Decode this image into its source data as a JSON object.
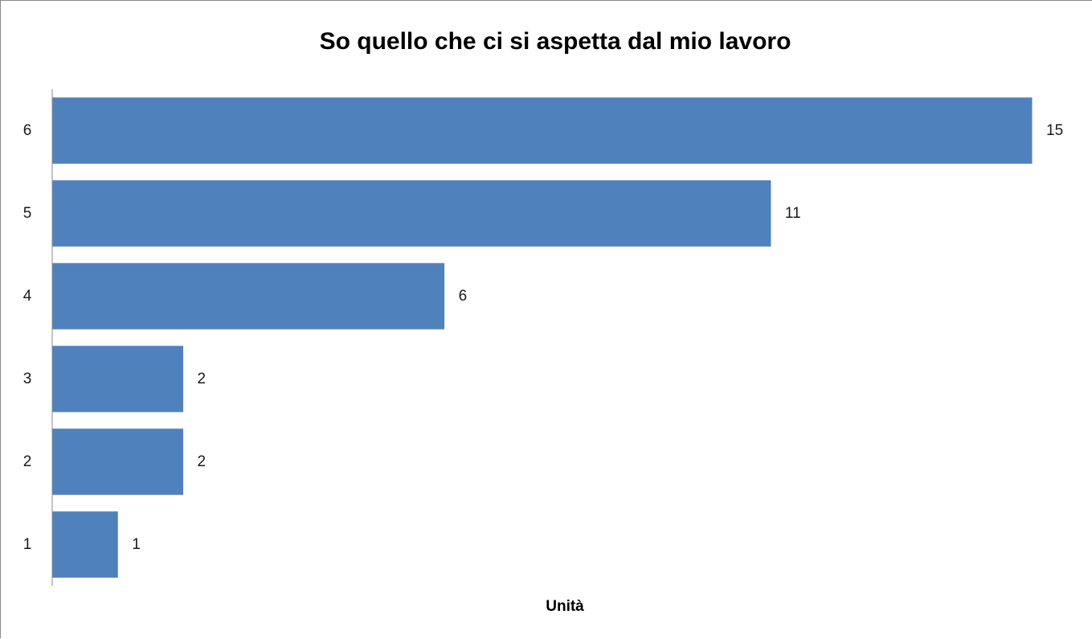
{
  "chart_data": {
    "type": "bar",
    "orientation": "horizontal",
    "title": "So quello che ci si aspetta dal mio lavoro",
    "categories": [
      "1",
      "2",
      "3",
      "4",
      "5",
      "6"
    ],
    "values": [
      1,
      2,
      2,
      6,
      11,
      15
    ],
    "xlabel": "Unità",
    "ylabel": "",
    "xlim": [
      0,
      15
    ],
    "grid": false,
    "legend": "none",
    "bar_color": "#4f81bd",
    "data_labels": true
  }
}
